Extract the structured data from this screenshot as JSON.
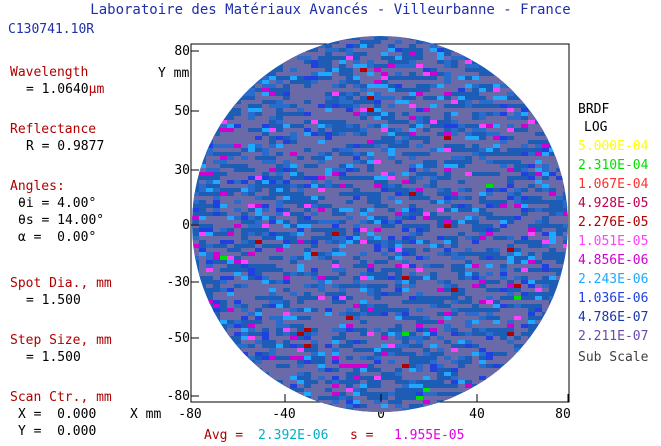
{
  "header": {
    "title": "Laboratoire des Matériaux Avancés - Villeurbanne - France",
    "file_id": "C130741.10R"
  },
  "params": {
    "wavelength_label": "Wavelength",
    "wavelength_value": "= 1.0640",
    "wavelength_unit": "µm",
    "reflectance_label": "Reflectance",
    "reflectance_value": "R = 0.9877",
    "angles_label": "Angles:",
    "theta_i_name": "θi =",
    "theta_i_value": "4.00°",
    "theta_s_name": "θs =",
    "theta_s_value": "14.00°",
    "alpha_name": "α =",
    "alpha_value": "0.00°",
    "spot_label": "Spot Dia., mm",
    "spot_value": "= 1.500",
    "step_label": "Step Size, mm",
    "step_value": "= 1.500",
    "scan_label": "Scan Ctr., mm",
    "x_name": "X =",
    "x_value": "0.000",
    "y_name": "Y =",
    "y_value": "0.000"
  },
  "plot": {
    "y_axis_label": "Y mm",
    "x_axis_label": "X mm",
    "x_ticks": [
      "-80",
      "-40",
      "0",
      "40",
      "80"
    ],
    "y_ticks": [
      "80",
      "50",
      "30",
      "0",
      "-30",
      "-50",
      "-80"
    ]
  },
  "stats": {
    "avg_label": "Avg =",
    "avg_value": "2.392E-06",
    "s_label": "s =",
    "s_value": "1.955E-05"
  },
  "legend": {
    "title": "BRDF",
    "scale": "LOG",
    "entries": [
      {
        "label": "5.000E-04",
        "color": "#ffff00"
      },
      {
        "label": "2.310E-04",
        "color": "#00e000"
      },
      {
        "label": "1.067E-04",
        "color": "#ff3030"
      },
      {
        "label": "4.928E-05",
        "color": "#c00050"
      },
      {
        "label": "2.276E-05",
        "color": "#b00000"
      },
      {
        "label": "1.051E-05",
        "color": "#ff40ff"
      },
      {
        "label": "4.856E-06",
        "color": "#d000d0"
      },
      {
        "label": "2.243E-06",
        "color": "#20a8ff"
      },
      {
        "label": "1.036E-06",
        "color": "#2040e0"
      },
      {
        "label": "4.786E-07",
        "color": "#1838b0"
      },
      {
        "label": "2.211E-07",
        "color": "#6a4aa8"
      }
    ],
    "sub_scale": "Sub Scale"
  },
  "colors": {
    "text_blue": "#1f2fa8",
    "text_red": "#b00000",
    "map_base": "#1d5db5",
    "map_grey": "#6a6aa8"
  }
}
